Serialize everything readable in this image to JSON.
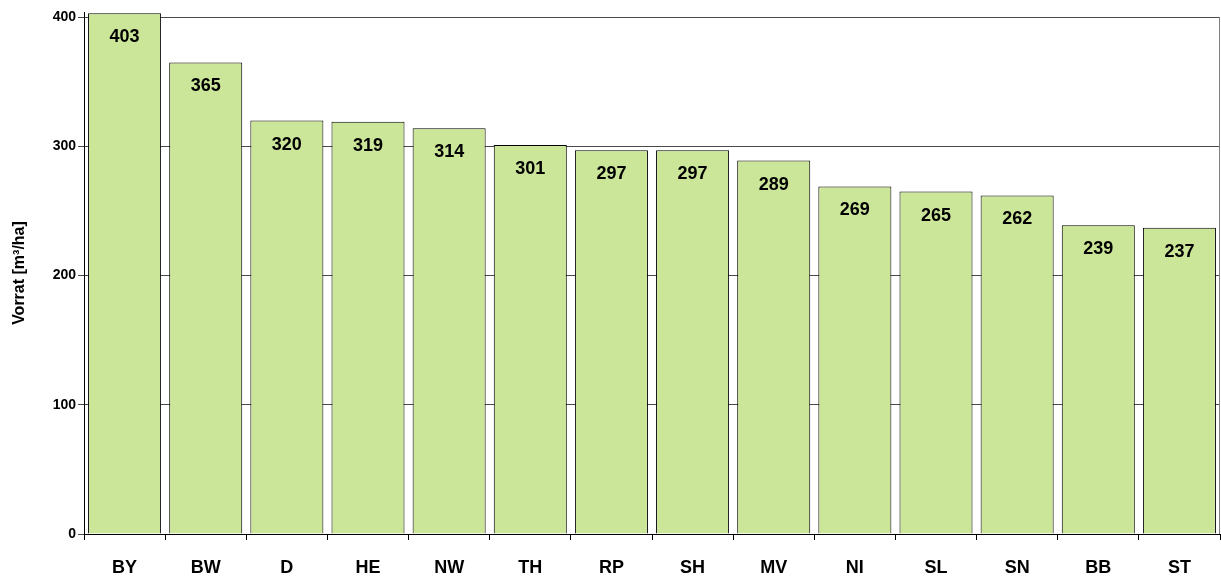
{
  "chart_data": {
    "type": "bar",
    "ylabel": "Vorrat [m³/ha]",
    "categories": [
      "BY",
      "BW",
      "D",
      "HE",
      "NW",
      "TH",
      "RP",
      "SH",
      "MV",
      "NI",
      "SL",
      "SN",
      "BB",
      "ST"
    ],
    "values": [
      403,
      365,
      320,
      319,
      314,
      301,
      297,
      297,
      289,
      269,
      265,
      262,
      239,
      237
    ],
    "color": "#cce699",
    "ylim": [
      0,
      404
    ],
    "yticks": [
      0,
      100,
      200,
      300,
      400
    ],
    "grid": "y",
    "data_labels": true
  }
}
